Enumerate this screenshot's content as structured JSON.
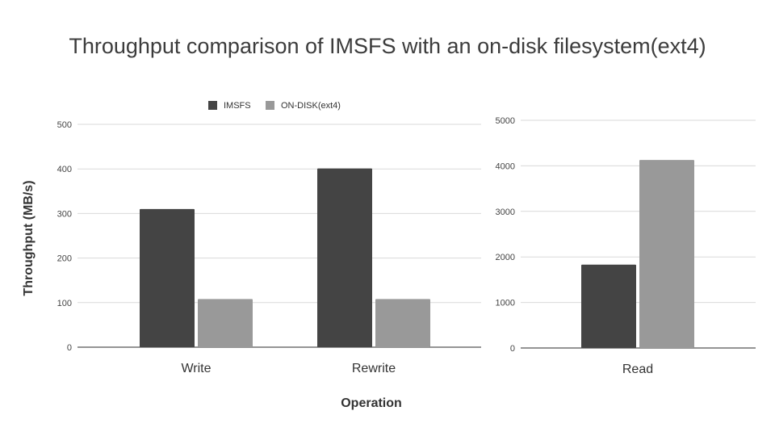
{
  "title": "Throughput comparison of IMSFS with an on-disk filesystem(ext4)",
  "colors": {
    "IMSFS": "#444444",
    "ON-DISK(ext4)": "#999999",
    "grid": "#d9d9d9",
    "axis": "#555555"
  },
  "chart_data": [
    {
      "type": "bar",
      "categories": [
        "Write",
        "Rewrite"
      ],
      "series": [
        {
          "name": "IMSFS",
          "values": [
            310,
            401
          ]
        },
        {
          "name": "ON-DISK(ext4)",
          "values": [
            108,
            108
          ]
        }
      ],
      "ylim": [
        0,
        500
      ],
      "yticks": [
        0,
        100,
        200,
        300,
        400,
        500
      ],
      "ylabel": "Throughput (MB/s)",
      "legend": "top-center",
      "grid": true
    },
    {
      "type": "bar",
      "categories": [
        "Read"
      ],
      "series": [
        {
          "name": "IMSFS",
          "values": [
            1830
          ]
        },
        {
          "name": "ON-DISK(ext4)",
          "values": [
            4130
          ]
        }
      ],
      "ylim": [
        0,
        5000
      ],
      "yticks": [
        0,
        1000,
        2000,
        3000,
        4000,
        5000
      ],
      "grid": true
    }
  ],
  "xlabel": "Operation"
}
